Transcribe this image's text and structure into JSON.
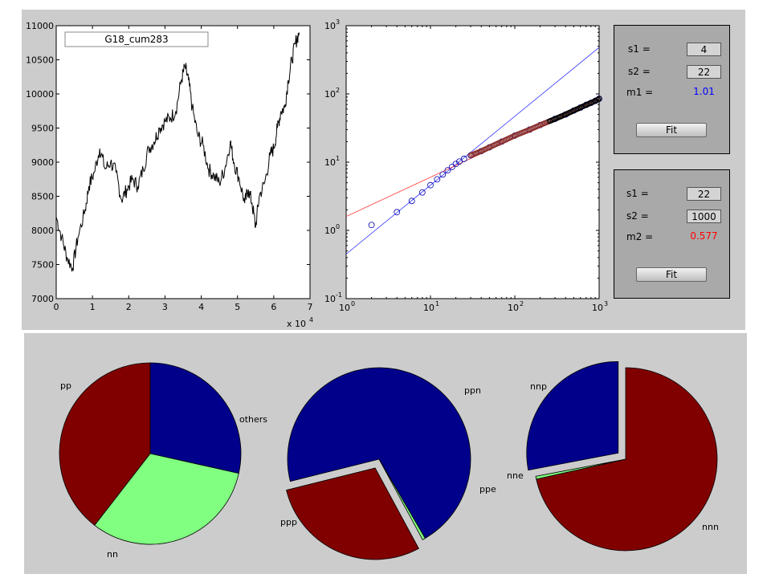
{
  "colors": {
    "panel": "#cccccc",
    "fitbox": "#a9a9a9",
    "blue_text": "#0000ff",
    "red_text": "#ff0000",
    "dark_red": "#800000",
    "dark_blue": "#00008b",
    "light_green": "#80ff80"
  },
  "chart_data": [
    {
      "type": "line",
      "legend": "G18_cum283",
      "legend_placement": "top-left",
      "x_exponent_label": "x 10",
      "x_exponent": "4",
      "xlim": [
        0,
        70000
      ],
      "ylim": [
        7000,
        11000
      ],
      "x_ticks": [
        "0",
        "1",
        "2",
        "3",
        "4",
        "5",
        "6",
        "7"
      ],
      "y_ticks": [
        "7000",
        "7500",
        "8000",
        "8500",
        "9000",
        "9500",
        "10000",
        "10500",
        "11000"
      ],
      "series": [
        {
          "x": [
            0,
            1500,
            3000,
            4500,
            6000,
            8000,
            9000,
            10500,
            12000,
            13500,
            15000,
            16500,
            18000,
            19500,
            21000,
            22500,
            24000,
            25500,
            27000,
            28500,
            30000,
            31500,
            33000,
            34500,
            35500,
            36500,
            37500,
            39000,
            40500,
            42000,
            43500,
            45000,
            46500,
            48000,
            49000,
            50500,
            52000,
            53000,
            54000,
            55000,
            56000,
            57500,
            59000,
            60000,
            61000,
            62000,
            63000,
            64000,
            65000,
            66000,
            67000
          ],
          "y": [
            8200,
            7900,
            7600,
            7450,
            7900,
            8300,
            8650,
            8850,
            9200,
            8900,
            9000,
            8850,
            8450,
            8600,
            8750,
            8650,
            8900,
            9200,
            9300,
            9500,
            9600,
            9650,
            9750,
            10200,
            10400,
            10200,
            9800,
            9400,
            9250,
            8900,
            8800,
            8700,
            8900,
            9300,
            9000,
            8750,
            8400,
            8600,
            8400,
            8050,
            8500,
            8700,
            9100,
            9200,
            9500,
            9750,
            9800,
            10200,
            10500,
            10750,
            10900
          ]
        }
      ]
    },
    {
      "type": "scatter",
      "scale": "log-log",
      "xlim": [
        1,
        1000
      ],
      "ylim": [
        0.1,
        1000
      ],
      "x_ticks": [
        {
          "base": "10",
          "exp": "0"
        },
        {
          "base": "10",
          "exp": "1"
        },
        {
          "base": "10",
          "exp": "2"
        },
        {
          "base": "10",
          "exp": "3"
        }
      ],
      "y_ticks": [
        {
          "base": "10",
          "exp": "-1"
        },
        {
          "base": "10",
          "exp": "0"
        },
        {
          "base": "10",
          "exp": "1"
        },
        {
          "base": "10",
          "exp": "2"
        },
        {
          "base": "10",
          "exp": "3"
        }
      ],
      "points": {
        "x": [
          2,
          4,
          6,
          8,
          10,
          12,
          14,
          16,
          18,
          20,
          22,
          25,
          30,
          40,
          50,
          70,
          100,
          150,
          200,
          300,
          400,
          500,
          600,
          700,
          800,
          900,
          1000
        ],
        "y": [
          1.2,
          1.85,
          2.7,
          3.6,
          4.6,
          5.6,
          6.6,
          7.6,
          8.5,
          9.4,
          10.2,
          11.2,
          12.6,
          14.5,
          16.5,
          20,
          24.5,
          30,
          35,
          43,
          50,
          57,
          63,
          69,
          74,
          79,
          85
        ]
      },
      "fit_lines": [
        {
          "name": "blue fit",
          "color": "#3333ff",
          "from": [
            1,
            0.45
          ],
          "to": [
            1000,
            480
          ]
        },
        {
          "name": "red fit",
          "color": "#ff3333",
          "from": [
            1,
            1.6
          ],
          "to": [
            1000,
            85
          ]
        }
      ]
    },
    {
      "type": "pie",
      "slices": [
        {
          "label": "pp",
          "value": 0.285,
          "color": "#00008b",
          "exploded": false
        },
        {
          "label": "nn",
          "value": 0.32,
          "color": "#80ff80",
          "exploded": false
        },
        {
          "label": "others",
          "value": 0.395,
          "color": "#800000",
          "exploded": false
        }
      ]
    },
    {
      "type": "pie",
      "slices": [
        {
          "label": "ppp",
          "value": 0.705,
          "color": "#00008b",
          "exploded": false
        },
        {
          "label": "ppe",
          "value": 0.005,
          "color": "#80ff80",
          "exploded": false
        },
        {
          "label": "ppn",
          "value": 0.29,
          "color": "#800000",
          "exploded": true
        }
      ]
    },
    {
      "type": "pie",
      "slices": [
        {
          "label": "nnn",
          "value": 0.715,
          "color": "#800000",
          "exploded": false
        },
        {
          "label": "nne",
          "value": 0.005,
          "color": "#80ff80",
          "exploded": false
        },
        {
          "label": "nnp",
          "value": 0.28,
          "color": "#00008b",
          "exploded": true
        }
      ]
    }
  ],
  "fit1": {
    "s1_label": "s1 =",
    "s1_value": "4",
    "s2_label": "s2 =",
    "s2_value": "22",
    "m_label": "m1 =",
    "m_value": "1.01",
    "button": "Fit"
  },
  "fit2": {
    "s1_label": "s1 =",
    "s1_value": "22",
    "s2_label": "s2 =",
    "s2_value": "1000",
    "m_label": "m2 =",
    "m_value": "0.577",
    "button": "Fit"
  }
}
